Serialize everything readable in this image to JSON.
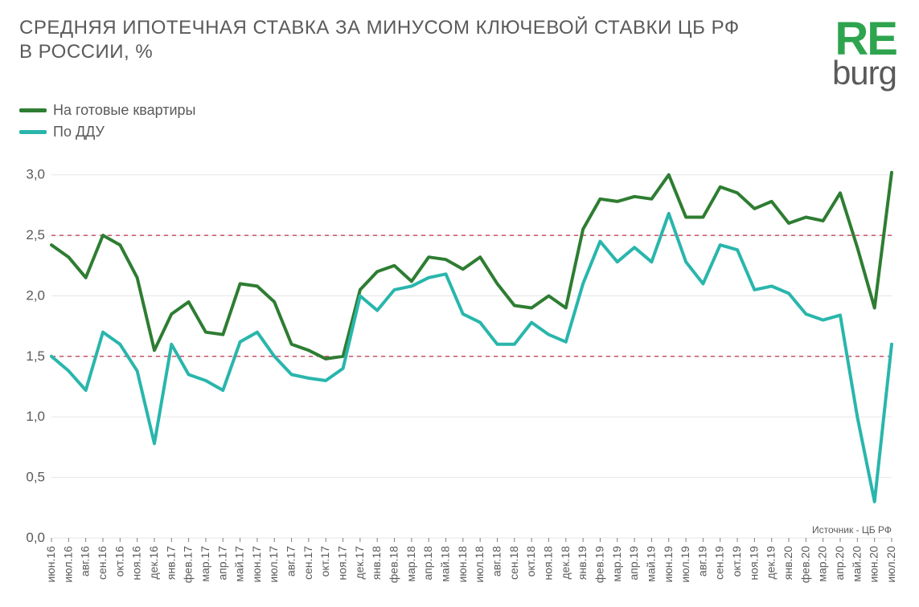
{
  "title_line1": "СРЕДНЯЯ ИПОТЕЧНАЯ СТАВКА ЗА МИНУСОМ КЛЮЧЕВОЙ СТАВКИ ЦБ РФ",
  "title_line2": "В РОССИИ, %",
  "logo_top": "RE",
  "logo_bottom": "burg",
  "source_text": "Источник  - ЦБ РФ",
  "chart": {
    "type": "line",
    "background_color": "#ffffff",
    "grid_color": "#e6e6e6",
    "line_width": 4,
    "title_fontsize": 24,
    "label_fontsize": 17,
    "xtick_fontsize": 14,
    "ylim": [
      0.0,
      3.25
    ],
    "yticks": [
      0.0,
      0.5,
      1.0,
      1.5,
      2.0,
      2.5,
      3.0
    ],
    "ytick_labels": [
      "0,0",
      "0,5",
      "1,0",
      "1,5",
      "2,0",
      "2,5",
      "3,0"
    ],
    "reference_lines": {
      "values": [
        1.5,
        2.5
      ],
      "color": "#b00020",
      "dash": "5,5",
      "width": 1
    },
    "categories": [
      "июн.16",
      "июл.16",
      "авг.16",
      "сен.16",
      "окт.16",
      "ноя.16",
      "дек.16",
      "янв.17",
      "фев.17",
      "мар.17",
      "апр.17",
      "май.17",
      "июн.17",
      "июл.17",
      "авг.17",
      "сен.17",
      "окт.17",
      "ноя.17",
      "дек.17",
      "янв.18",
      "фев.18",
      "мар.18",
      "апр.18",
      "май.18",
      "июн.18",
      "июл.18",
      "авг.18",
      "сен.18",
      "окт.18",
      "ноя.18",
      "дек.18",
      "янв.19",
      "фев.19",
      "мар.19",
      "апр.19",
      "май.19",
      "июн.19",
      "июл.19",
      "авг.19",
      "сен.19",
      "окт.19",
      "ноя.19",
      "дек.19",
      "янв.20",
      "фев.20",
      "мар.20",
      "апр.20",
      "май.20",
      "июн.20",
      "июл.20"
    ],
    "series": [
      {
        "name": "На готовые квартиры",
        "color": "#2e7d32",
        "values": [
          2.42,
          2.32,
          2.15,
          2.5,
          2.42,
          2.15,
          1.55,
          1.85,
          1.95,
          1.7,
          1.68,
          2.1,
          2.08,
          1.95,
          1.6,
          1.55,
          1.48,
          1.5,
          2.05,
          2.2,
          2.25,
          2.12,
          2.32,
          2.3,
          2.22,
          2.32,
          2.1,
          1.92,
          1.9,
          2.0,
          1.9,
          2.55,
          2.8,
          2.78,
          2.82,
          2.8,
          3.0,
          2.65,
          2.65,
          2.9,
          2.85,
          2.72,
          2.78,
          2.6,
          2.65,
          2.62,
          2.85,
          2.4,
          1.9,
          3.02
        ]
      },
      {
        "name": "По ДДУ",
        "color": "#29b6ac",
        "values": [
          1.5,
          1.38,
          1.22,
          1.7,
          1.6,
          1.38,
          0.78,
          1.6,
          1.35,
          1.3,
          1.22,
          1.62,
          1.7,
          1.5,
          1.35,
          1.32,
          1.3,
          1.4,
          2.0,
          1.88,
          2.05,
          2.08,
          2.15,
          2.18,
          1.85,
          1.78,
          1.6,
          1.6,
          1.78,
          1.68,
          1.62,
          2.1,
          2.45,
          2.28,
          2.4,
          2.28,
          2.68,
          2.28,
          2.1,
          2.42,
          2.38,
          2.05,
          2.08,
          2.02,
          1.85,
          1.8,
          1.84,
          1.0,
          0.3,
          1.6
        ]
      }
    ]
  },
  "legend": [
    {
      "label": "На готовые квартиры",
      "color": "#2e7d32"
    },
    {
      "label": "По ДДУ",
      "color": "#29b6ac"
    }
  ]
}
